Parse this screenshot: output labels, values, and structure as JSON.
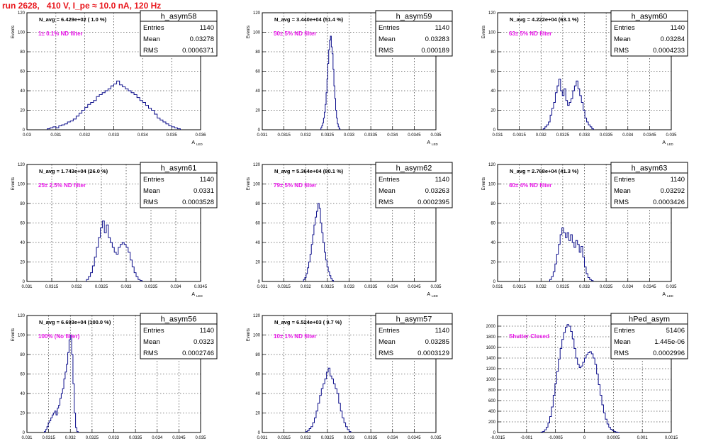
{
  "page_title": "run 2628,   410 V, I_pe ≈ 10.0 nA, 120 Hz",
  "stats_labels": {
    "entries": "Entries",
    "mean": "Mean",
    "rms": "RMS"
  },
  "annotation_color": "#e817e8",
  "histogram_color": "#0b0d8a",
  "chart_data": [
    {
      "type": "histogram",
      "title": "h_asym58",
      "navg_text": "N_avg = 6.429e+02 ( 1.0 %)",
      "annotation": "1± 0.1% ND filter",
      "stats": {
        "entries": "1140",
        "mean": "0.03278",
        "rms": "0.0006371"
      },
      "xlabel": "A",
      "xlabel_sub": "LED",
      "ylabel": "Events",
      "xlim": [
        0.03,
        0.036
      ],
      "ylim": [
        0,
        120
      ],
      "xticks": [
        0.03,
        0.031,
        0.032,
        0.033,
        0.034,
        0.035,
        0.036
      ],
      "xtick_labels": [
        "0.03",
        "0.031",
        "0.032",
        "0.033",
        "0.034",
        "0.035",
        "0.036"
      ],
      "yticks": [
        0,
        20,
        40,
        60,
        80,
        100,
        120
      ],
      "bin_start": 0.0307,
      "bin_width": 0.0001,
      "counts": [
        1,
        2,
        3,
        2,
        4,
        5,
        6,
        8,
        9,
        11,
        14,
        17,
        20,
        23,
        26,
        28,
        30,
        34,
        36,
        38,
        40,
        42,
        45,
        47,
        50,
        46,
        44,
        42,
        40,
        38,
        36,
        33,
        30,
        28,
        25,
        22,
        20,
        16,
        12,
        10,
        8,
        6,
        4,
        3,
        2,
        1
      ]
    },
    {
      "type": "histogram",
      "title": "h_asym59",
      "navg_text": "N_avg = 3.440e+04 (51.4 %)",
      "annotation": "50± 5% ND filter",
      "stats": {
        "entries": "1140",
        "mean": "0.03283",
        "rms": "0.000189"
      },
      "xlabel": "A",
      "xlabel_sub": "LED",
      "ylabel": "Events",
      "xlim": [
        0.031,
        0.035
      ],
      "ylim": [
        0,
        120
      ],
      "xticks": [
        0.031,
        0.0315,
        0.032,
        0.0325,
        0.033,
        0.0335,
        0.034,
        0.0345,
        0.035
      ],
      "xtick_labels": [
        "0.031",
        "0.0315",
        "0.032",
        "0.0325",
        "0.033",
        "0.0335",
        "0.034",
        "0.0345",
        "0.035"
      ],
      "yticks": [
        0,
        20,
        40,
        60,
        80,
        100,
        120
      ],
      "bin_start": 0.03235,
      "bin_width": 2e-05,
      "counts": [
        2,
        4,
        7,
        12,
        18,
        26,
        38,
        52,
        68,
        82,
        92,
        96,
        85,
        78,
        62,
        45,
        32,
        20,
        12,
        6,
        3,
        1
      ]
    },
    {
      "type": "histogram",
      "title": "h_asym60",
      "navg_text": "N_avg = 4.222e+04 (63.1 %)",
      "annotation": "63± 5% ND filter",
      "stats": {
        "entries": "1140",
        "mean": "0.03284",
        "rms": "0.0004233"
      },
      "xlabel": "A",
      "xlabel_sub": "LED",
      "ylabel": "Events",
      "xlim": [
        0.031,
        0.035
      ],
      "ylim": [
        0,
        120
      ],
      "xticks": [
        0.031,
        0.0315,
        0.032,
        0.0325,
        0.033,
        0.0335,
        0.034,
        0.0345,
        0.035
      ],
      "xtick_labels": [
        "0.031",
        "0.0315",
        "0.032",
        "0.0325",
        "0.033",
        "0.0335",
        "0.034",
        "0.0345",
        "0.035"
      ],
      "yticks": [
        0,
        20,
        40,
        60,
        80,
        100,
        120
      ],
      "bin_start": 0.03205,
      "bin_width": 4e-05,
      "counts": [
        1,
        3,
        5,
        8,
        15,
        22,
        28,
        38,
        45,
        52,
        40,
        35,
        42,
        30,
        25,
        28,
        32,
        40,
        45,
        50,
        42,
        35,
        28,
        20,
        12,
        8,
        5,
        3,
        1
      ]
    },
    {
      "type": "histogram",
      "title": "h_asym61",
      "navg_text": "N_avg = 1.743e+04 (26.0 %)",
      "annotation": "25± 2.5% ND filter",
      "stats": {
        "entries": "1140",
        "mean": "0.0331",
        "rms": "0.0003528"
      },
      "xlabel": "A",
      "xlabel_sub": "LED",
      "ylabel": "Events",
      "xlim": [
        0.031,
        0.0345
      ],
      "ylim": [
        0,
        120
      ],
      "xticks": [
        0.031,
        0.0315,
        0.032,
        0.0325,
        0.033,
        0.0335,
        0.034,
        0.0345
      ],
      "xtick_labels": [
        "0.031",
        "0.0315",
        "0.032",
        "0.0325",
        "0.033",
        "0.0335",
        "0.034",
        "0.0345"
      ],
      "yticks": [
        0,
        20,
        40,
        60,
        80,
        100,
        120
      ],
      "bin_start": 0.0322,
      "bin_width": 4e-05,
      "counts": [
        2,
        5,
        9,
        16,
        25,
        35,
        45,
        55,
        62,
        50,
        58,
        45,
        40,
        35,
        30,
        28,
        35,
        38,
        40,
        38,
        35,
        30,
        22,
        15,
        9,
        5,
        2,
        1
      ]
    },
    {
      "type": "histogram",
      "title": "h_asym62",
      "navg_text": "N_avg = 5.364e+04 (80.1 %)",
      "annotation": "79± 5% ND filter",
      "stats": {
        "entries": "1140",
        "mean": "0.03263",
        "rms": "0.0002395"
      },
      "xlabel": "A",
      "xlabel_sub": "LED",
      "ylabel": "Events",
      "xlim": [
        0.031,
        0.035
      ],
      "ylim": [
        0,
        120
      ],
      "xticks": [
        0.031,
        0.0315,
        0.032,
        0.0325,
        0.033,
        0.0335,
        0.034,
        0.0345,
        0.035
      ],
      "xtick_labels": [
        "0.031",
        "0.0315",
        "0.032",
        "0.0325",
        "0.033",
        "0.0335",
        "0.034",
        "0.0345",
        "0.035"
      ],
      "yticks": [
        0,
        20,
        40,
        60,
        80,
        100,
        120
      ],
      "bin_start": 0.03195,
      "bin_width": 3e-05,
      "counts": [
        2,
        4,
        8,
        14,
        20,
        28,
        38,
        48,
        58,
        66,
        72,
        80,
        75,
        60,
        50,
        40,
        30,
        22,
        15,
        10,
        6,
        3,
        1
      ]
    },
    {
      "type": "histogram",
      "title": "h_asym63",
      "navg_text": "N_avg = 2.768e+04 (41.3 %)",
      "annotation": "40± 4% ND filter",
      "stats": {
        "entries": "1140",
        "mean": "0.03292",
        "rms": "0.0003426"
      },
      "xlabel": "A",
      "xlabel_sub": "LED",
      "ylabel": "Events",
      "xlim": [
        0.031,
        0.035
      ],
      "ylim": [
        0,
        120
      ],
      "xticks": [
        0.031,
        0.0315,
        0.032,
        0.0325,
        0.033,
        0.0335,
        0.034,
        0.0345,
        0.035
      ],
      "xtick_labels": [
        "0.031",
        "0.0315",
        "0.032",
        "0.0325",
        "0.033",
        "0.0335",
        "0.034",
        "0.0345",
        "0.035"
      ],
      "yticks": [
        0,
        20,
        40,
        60,
        80,
        100,
        120
      ],
      "bin_start": 0.0322,
      "bin_width": 4e-05,
      "counts": [
        2,
        5,
        10,
        18,
        28,
        38,
        48,
        55,
        50,
        45,
        50,
        42,
        48,
        40,
        35,
        42,
        38,
        30,
        36,
        25,
        15,
        8,
        4,
        2,
        1
      ]
    },
    {
      "type": "histogram",
      "title": "h_asym56",
      "navg_text": "N_avg = 6.693e+04 (100.0 %)",
      "annotation": "100% (No filter)",
      "stats": {
        "entries": "1140",
        "mean": "0.0323",
        "rms": "0.0002746"
      },
      "xlabel": "A",
      "xlabel_sub": "LED",
      "ylabel": "Events",
      "xlim": [
        0.031,
        0.035
      ],
      "ylim": [
        0,
        120
      ],
      "xticks": [
        0.031,
        0.0315,
        0.032,
        0.0325,
        0.033,
        0.0335,
        0.034,
        0.0345,
        0.035
      ],
      "xtick_labels": [
        "0.031",
        "0.0315",
        "0.032",
        "0.0325",
        "0.033",
        "0.0335",
        "0.034",
        "0.0345",
        "0.035"
      ],
      "yticks": [
        0,
        20,
        40,
        60,
        80,
        100,
        120
      ],
      "bin_start": 0.0314,
      "bin_width": 3e-05,
      "counts": [
        1,
        3,
        6,
        10,
        12,
        15,
        18,
        20,
        22,
        18,
        25,
        28,
        35,
        40,
        45,
        55,
        62,
        70,
        82,
        95,
        100,
        80,
        50,
        20,
        5,
        1
      ]
    },
    {
      "type": "histogram",
      "title": "h_asym57",
      "navg_text": "N_avg = 6.524e+03 ( 9.7 %)",
      "annotation": "10± 1% ND filter",
      "stats": {
        "entries": "1140",
        "mean": "0.03285",
        "rms": "0.0003129"
      },
      "xlabel": "A",
      "xlabel_sub": "LED",
      "ylabel": "Events",
      "xlim": [
        0.031,
        0.035
      ],
      "ylim": [
        0,
        120
      ],
      "xticks": [
        0.031,
        0.0315,
        0.032,
        0.0325,
        0.033,
        0.0335,
        0.034,
        0.0345,
        0.035
      ],
      "xtick_labels": [
        "0.031",
        "0.0315",
        "0.032",
        "0.0325",
        "0.033",
        "0.0335",
        "0.034",
        "0.0345",
        "0.035"
      ],
      "yticks": [
        0,
        20,
        40,
        60,
        80,
        100,
        120
      ],
      "bin_start": 0.032,
      "bin_width": 4e-05,
      "counts": [
        1,
        2,
        4,
        6,
        10,
        15,
        22,
        30,
        38,
        45,
        50,
        55,
        62,
        66,
        58,
        55,
        50,
        45,
        40,
        30,
        22,
        15,
        10,
        6,
        3,
        1
      ]
    },
    {
      "type": "histogram",
      "title": "hPed_asym",
      "navg_text": "",
      "annotation": "Shutter Closed",
      "stats": {
        "entries": "51406",
        "mean": "1.445e-06",
        "rms": "0.0002996"
      },
      "xlabel": "",
      "xlabel_sub": "",
      "ylabel": "",
      "xlim": [
        -0.0015,
        0.0015
      ],
      "ylim": [
        0,
        2200
      ],
      "xticks": [
        -0.0015,
        -0.001,
        -0.0005,
        0,
        0.0005,
        0.001,
        0.0015
      ],
      "xtick_labels": [
        "-0.0015",
        "-0.001",
        "-0.0005",
        "0",
        "0.0005",
        "0.001",
        "0.0015"
      ],
      "yticks": [
        0,
        200,
        400,
        600,
        800,
        1000,
        1200,
        1400,
        1600,
        1800,
        2000
      ],
      "bin_start": -0.00075,
      "bin_width": 3e-05,
      "counts": [
        8,
        20,
        50,
        100,
        180,
        300,
        480,
        700,
        920,
        1150,
        1380,
        1580,
        1750,
        1880,
        1980,
        2030,
        2000,
        1900,
        1760,
        1580,
        1400,
        1280,
        1220,
        1250,
        1320,
        1400,
        1460,
        1500,
        1520,
        1480,
        1400,
        1280,
        1100,
        900,
        700,
        520,
        370,
        250,
        160,
        100,
        60,
        35,
        18,
        8,
        3
      ]
    }
  ]
}
